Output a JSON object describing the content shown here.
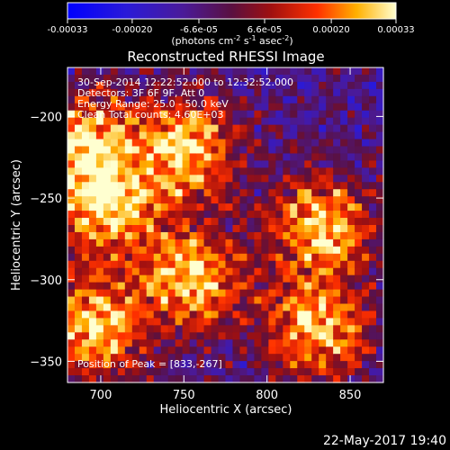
{
  "chart_data": {
    "type": "heatmap",
    "title": "Reconstructed RHESSI Image",
    "xlabel": "Heliocentric X (arcsec)",
    "ylabel": "Heliocentric Y (arcsec)",
    "xlim": [
      680,
      870
    ],
    "ylim": [
      -363,
      -170
    ],
    "x_ticks": [
      700,
      750,
      800,
      850
    ],
    "y_ticks": [
      -200,
      -250,
      -300,
      -350
    ],
    "colorbar": {
      "range": [
        -0.00033,
        0.00033
      ],
      "ticks": [
        -0.00033,
        -0.0002,
        -6.6e-05,
        6.6e-05,
        0.0002,
        0.00033
      ],
      "tick_labels": [
        "-0.00033",
        "-0.00020",
        "-6.6e-05",
        "6.6e-05",
        "0.00020",
        "0.00033"
      ],
      "unit_main": "(photons cm",
      "unit_sup1": "-2",
      "unit_mid1": " s",
      "unit_sup2": "-1",
      "unit_mid2": " asec",
      "unit_sup3": "-2",
      "unit_end": ")"
    },
    "annotations": [
      "30-Sep-2014 12:22:52.000 to 12:32:52.000",
      "Detectors: 3F 6F 9F, Att 0",
      "Energy Range: 25.0 - 50.0 keV",
      "Clean   Total counts: 4.60E+03"
    ],
    "peak_label": "Position of Peak = [833,-267]",
    "peak": {
      "x": 833,
      "y": -267
    },
    "bright_regions": [
      {
        "x": 752,
        "y": -220
      },
      {
        "x": 690,
        "y": -215
      },
      {
        "x": 705,
        "y": -258
      },
      {
        "x": 755,
        "y": -300
      },
      {
        "x": 833,
        "y": -267
      },
      {
        "x": 830,
        "y": -330
      },
      {
        "x": 695,
        "y": -330
      }
    ]
  },
  "footer": {
    "date": "22-May-2017 19:40"
  }
}
